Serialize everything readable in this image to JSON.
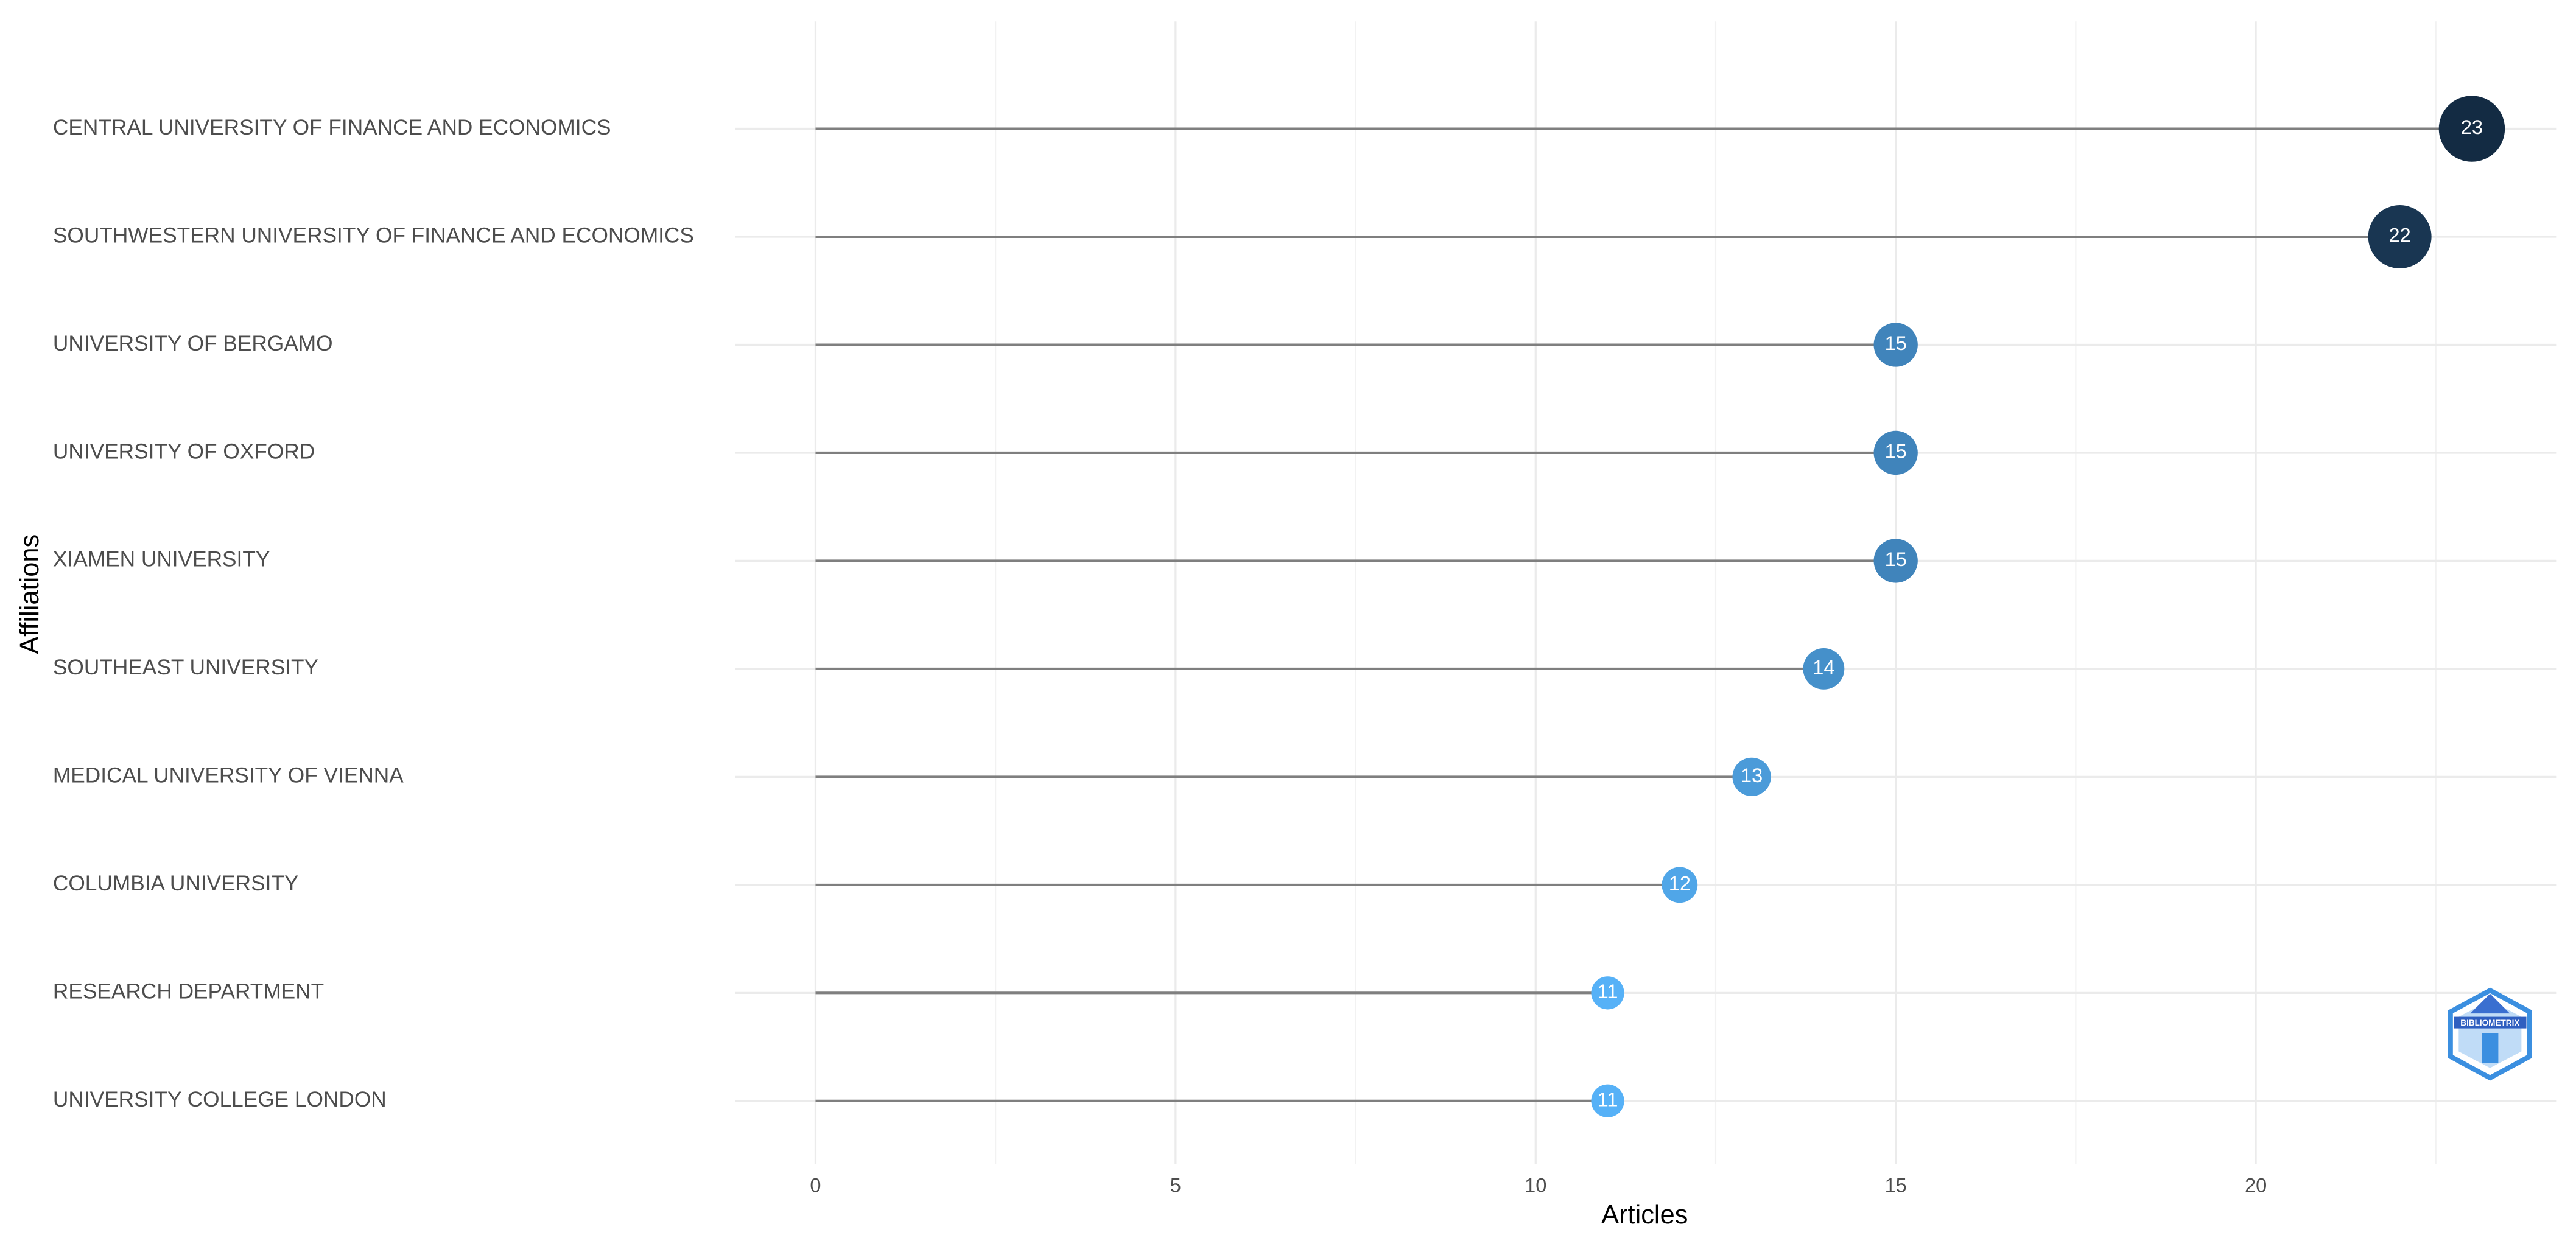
{
  "chart_data": {
    "type": "lollipop",
    "x_label": "Articles",
    "y_label": "Affiliations",
    "categories": [
      "CENTRAL UNIVERSITY OF FINANCE AND ECONOMICS",
      "SOUTHWESTERN UNIVERSITY OF FINANCE AND ECONOMICS",
      "UNIVERSITY OF BERGAMO",
      "UNIVERSITY OF OXFORD",
      "XIAMEN UNIVERSITY",
      "SOUTHEAST UNIVERSITY",
      "MEDICAL UNIVERSITY OF VIENNA",
      "COLUMBIA UNIVERSITY",
      "RESEARCH DEPARTMENT",
      "UNIVERSITY COLLEGE LONDON"
    ],
    "values": [
      23,
      22,
      15,
      15,
      15,
      14,
      13,
      12,
      11,
      11
    ],
    "colors": [
      "#56B1F7",
      "#132B43"
    ],
    "stem_color": "#7f7f7f",
    "xlim": [
      -1.12,
      24.17
    ],
    "xticks": [
      0,
      5,
      10,
      15,
      20
    ],
    "grid": true,
    "watermark": "BIBLIOMETRIX"
  }
}
